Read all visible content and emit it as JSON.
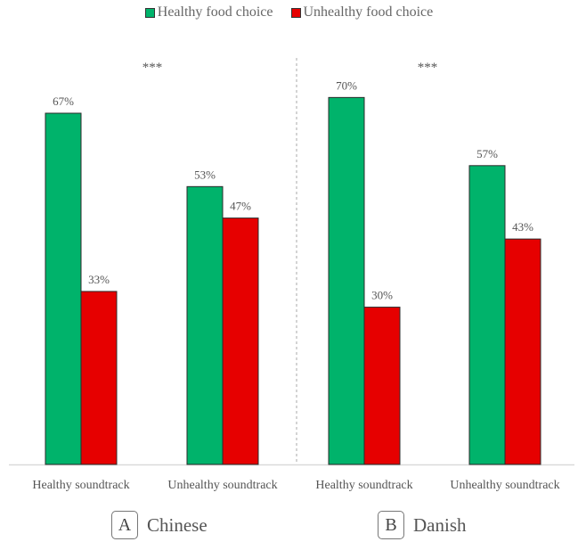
{
  "chart_data": {
    "type": "bar",
    "title": "",
    "xlabel": "",
    "ylabel": "",
    "ylim": [
      0,
      100
    ],
    "grid": false,
    "legend_position": "top-center",
    "legend": [
      {
        "name": "Healthy food choice",
        "color": "#00b36b"
      },
      {
        "name": "Unhealthy food choice",
        "color": "#e60000"
      }
    ],
    "panels": [
      {
        "id": "A",
        "name": "Chinese",
        "significance": "***",
        "categories": [
          "Healthy soundtrack",
          "Unhealthy soundtrack"
        ],
        "series": [
          {
            "name": "Healthy food choice",
            "values": [
              67,
              53
            ],
            "labels": [
              "67%",
              "53%"
            ]
          },
          {
            "name": "Unhealthy food choice",
            "values": [
              33,
              47
            ],
            "labels": [
              "33%",
              "47%"
            ]
          }
        ]
      },
      {
        "id": "B",
        "name": "Danish",
        "significance": "***",
        "categories": [
          "Healthy soundtrack",
          "Unhealthy soundtrack"
        ],
        "series": [
          {
            "name": "Healthy food choice",
            "values": [
              70,
              57
            ],
            "labels": [
              "70%",
              "57%"
            ]
          },
          {
            "name": "Unhealthy food choice",
            "values": [
              30,
              43
            ],
            "labels": [
              "30%",
              "43%"
            ]
          }
        ]
      }
    ]
  }
}
